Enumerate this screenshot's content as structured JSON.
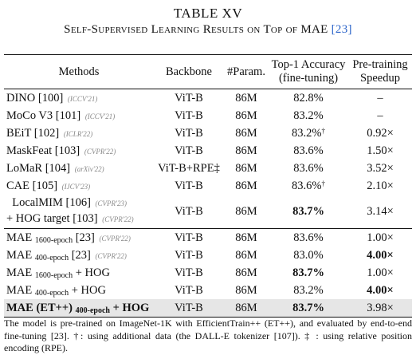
{
  "caption": {
    "label": "TABLE XV",
    "title": "Self-Supervised Learning Results on Top of MAE",
    "title_ref": "[23]"
  },
  "headers": {
    "methods": "Methods",
    "backbone": "Backbone",
    "params": "#Param.",
    "top1_line1": "Top-1 Accuracy",
    "top1_line2": "(fine-tuning)",
    "speedup_line1": "Pre-training",
    "speedup_line2": "Speedup"
  },
  "rows": [
    {
      "method": "DINO [100]",
      "venue": "(ICCV'21)",
      "backbone": "ViT-B",
      "params": "86M",
      "acc": "82.8%",
      "speedup": "–"
    },
    {
      "method": "MoCo V3 [101]",
      "venue": "(ICCV'21)",
      "backbone": "ViT-B",
      "params": "86M",
      "acc": "83.2%",
      "speedup": "–"
    },
    {
      "method": "BEiT [102]",
      "venue": "(ICLR'22)",
      "backbone": "ViT-B",
      "params": "86M",
      "acc": "83.2%",
      "acc_mark": "†",
      "speedup": "0.92×"
    },
    {
      "method": "MaskFeat [103]",
      "venue": "(CVPR'22)",
      "backbone": "ViT-B",
      "params": "86M",
      "acc": "83.6%",
      "speedup": "1.50×"
    },
    {
      "method": "LoMaR [104]",
      "venue": "(arXiv'22)",
      "backbone": "ViT-B+RPE‡",
      "params": "86M",
      "acc": "83.6%",
      "speedup": "3.52×"
    },
    {
      "method": "CAE [105]",
      "venue": "(IJCV'23)",
      "backbone": "ViT-B",
      "params": "86M",
      "acc": "83.6%",
      "acc_mark": "†",
      "speedup": "2.10×"
    },
    {
      "method": "LocalMIM [106]",
      "venue": "(CVPR'23)",
      "method_line2": "+ HOG target [103]",
      "venue_line2": "(CVPR'22)",
      "backbone": "ViT-B",
      "params": "86M",
      "acc": "83.7%",
      "speedup": "3.14×"
    },
    {
      "method": "MAE",
      "sub": "1600-epoch",
      "method_after": "[23]",
      "venue": "(CVPR'22)",
      "backbone": "ViT-B",
      "params": "86M",
      "acc": "83.6%",
      "speedup": "1.00×"
    },
    {
      "method": "MAE",
      "sub": "400-epoch",
      "method_after": "[23]",
      "venue": "(CVPR'22)",
      "backbone": "ViT-B",
      "params": "86M",
      "acc": "83.0%",
      "speedup": "4.00×"
    },
    {
      "method": "MAE",
      "sub": "1600-epoch",
      "method_after": "+ HOG",
      "backbone": "ViT-B",
      "params": "86M",
      "acc": "83.7%",
      "speedup": "1.00×"
    },
    {
      "method": "MAE",
      "sub": "400-epoch",
      "method_after": "+ HOG",
      "backbone": "ViT-B",
      "params": "86M",
      "acc": "83.2%",
      "speedup": "4.00×"
    },
    {
      "method": "MAE (ET++)",
      "sub": "400-epoch",
      "method_after": "+ HOG",
      "backbone": "ViT-B",
      "params": "86M",
      "acc": "83.7%",
      "speedup": "3.98×"
    }
  ],
  "note": "The model is pre-trained on ImageNet-1K with EfficientTrain++ (ET++), and evaluated by end-to-end fine-tuning [23]. †: using additional data (the DALL-E tokenizer [107]). ‡ : using relative position encoding (RPE)."
}
